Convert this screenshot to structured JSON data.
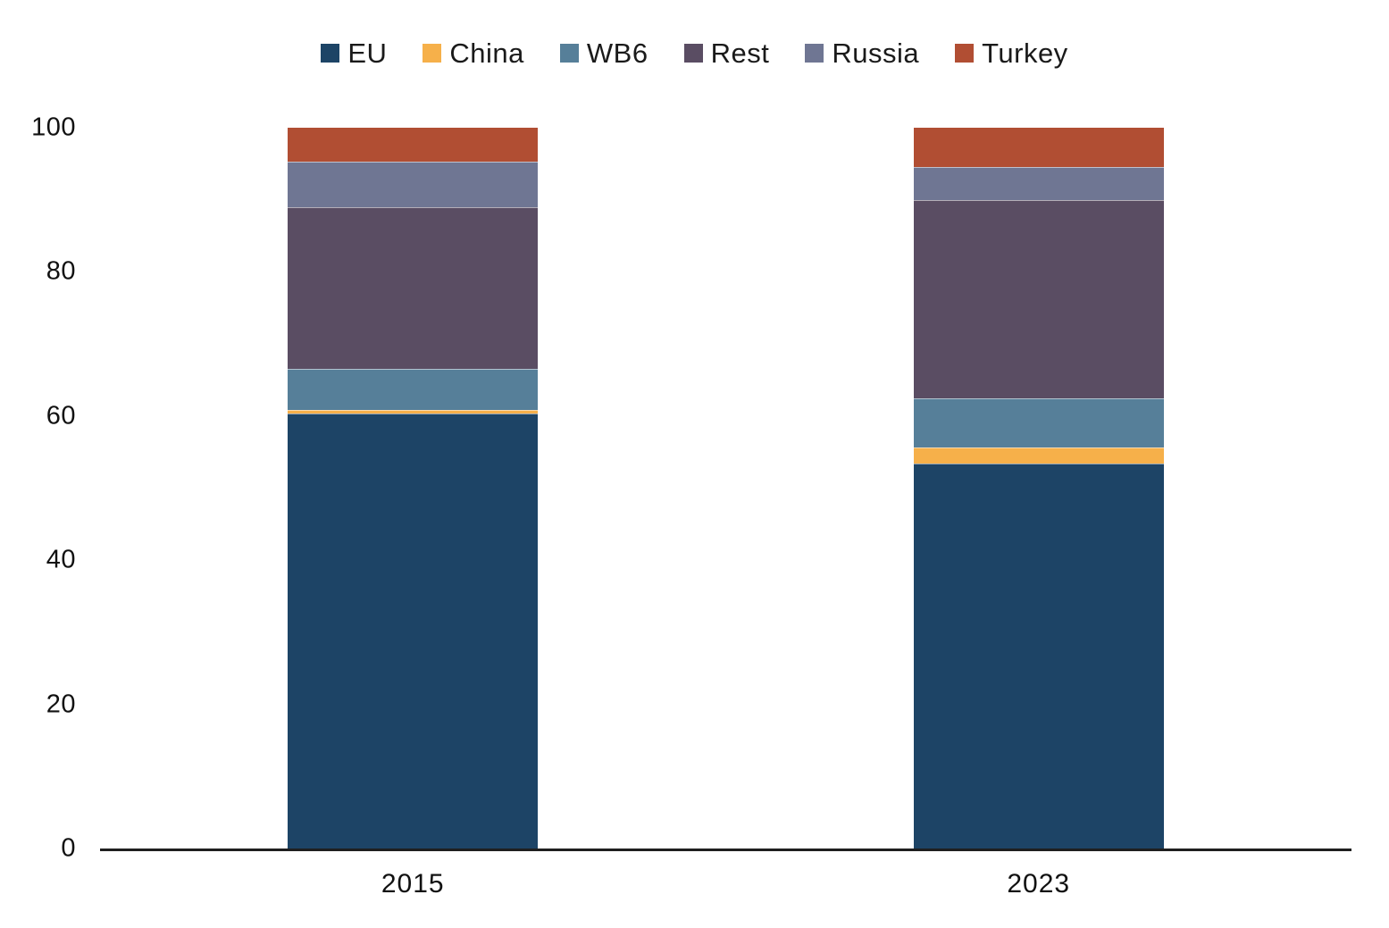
{
  "chart_data": {
    "type": "bar",
    "stacked": true,
    "title": "",
    "xlabel": "",
    "ylabel": "",
    "categories": [
      "2015",
      "2023"
    ],
    "series": [
      {
        "name": "EU",
        "color": "#1d4466",
        "values": [
          60.4,
          53.4
        ]
      },
      {
        "name": "China",
        "color": "#f6b04a",
        "values": [
          0.5,
          2.2
        ]
      },
      {
        "name": "WB6",
        "color": "#567f99",
        "values": [
          5.7,
          6.9
        ]
      },
      {
        "name": "Rest",
        "color": "#5a4d63",
        "values": [
          22.4,
          27.5
        ]
      },
      {
        "name": "Russia",
        "color": "#6f7693",
        "values": [
          6.3,
          4.5
        ]
      },
      {
        "name": "Turkey",
        "color": "#b14e33",
        "values": [
          4.7,
          5.5
        ]
      }
    ],
    "ylim": [
      0,
      100
    ],
    "yticks": [
      0,
      20,
      40,
      60,
      80,
      100
    ],
    "grid": false,
    "legend_position": "top-center",
    "axis_line_color": "#1f1f1f",
    "text_color": "#1a1a1a"
  }
}
